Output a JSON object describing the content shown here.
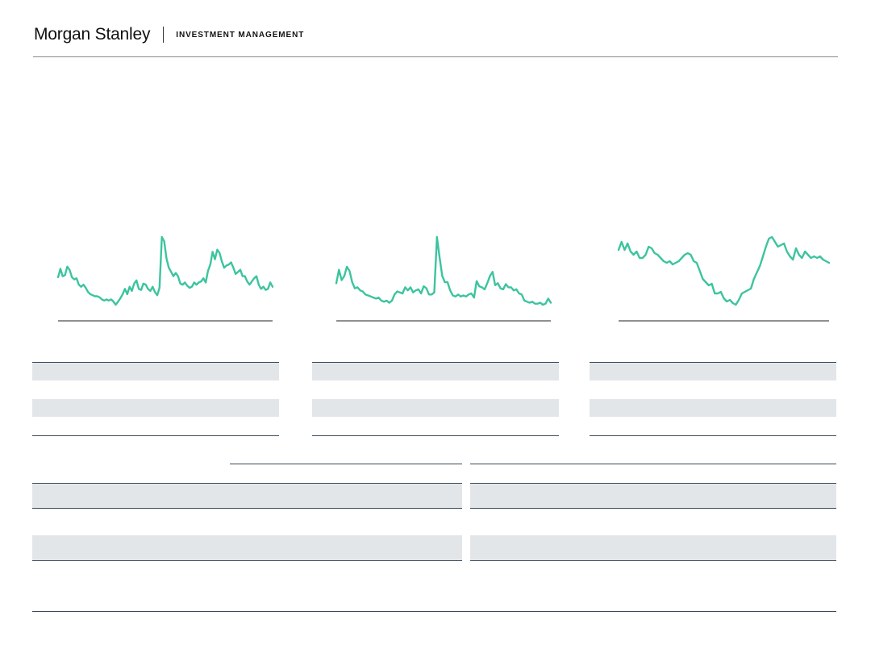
{
  "header": {
    "brand": "Morgan Stanley",
    "division": "INVESTMENT MANAGEMENT"
  },
  "colors": {
    "line": "#3cc49e",
    "band": "#e3e6e9",
    "rule": "#3a4a5a"
  },
  "chart_data": [
    {
      "type": "line",
      "title": "",
      "xlabel": "",
      "ylabel": "",
      "grid": false,
      "series": [
        {
          "values": [
            62,
            70,
            63,
            64,
            72,
            69,
            62,
            60,
            61,
            55,
            53,
            55,
            52,
            48,
            46,
            45,
            44,
            44,
            43,
            41,
            40,
            41,
            40,
            41,
            39,
            36,
            39,
            42,
            46,
            51,
            46,
            53,
            49,
            56,
            59,
            51,
            50,
            56,
            55,
            51,
            49,
            53,
            48,
            45,
            52,
            100,
            96,
            80,
            71,
            67,
            63,
            66,
            63,
            56,
            55,
            57,
            54,
            52,
            53,
            57,
            55,
            57,
            58,
            61,
            57,
            68,
            74,
            86,
            79,
            88,
            85,
            77,
            71,
            73,
            74,
            76,
            71,
            65,
            67,
            69,
            63,
            63,
            58,
            55,
            58,
            61,
            63,
            55,
            51,
            53,
            50,
            51,
            57,
            53
          ]
        }
      ]
    },
    {
      "type": "line",
      "title": "",
      "xlabel": "",
      "ylabel": "",
      "grid": false,
      "series": [
        {
          "values": [
            55,
            68,
            58,
            62,
            71,
            67,
            56,
            50,
            51,
            48,
            47,
            44,
            43,
            42,
            41,
            40,
            41,
            38,
            37,
            38,
            36,
            38,
            44,
            47,
            46,
            45,
            51,
            48,
            51,
            46,
            48,
            49,
            45,
            52,
            50,
            44,
            44,
            46,
            100,
            80,
            62,
            56,
            56,
            48,
            43,
            42,
            44,
            42,
            43,
            42,
            44,
            45,
            41,
            57,
            52,
            51,
            49,
            55,
            62,
            66,
            53,
            55,
            50,
            49,
            54,
            51,
            51,
            48,
            49,
            45,
            44,
            38,
            37,
            36,
            37,
            35,
            35,
            36,
            34,
            35,
            40,
            36
          ]
        }
      ]
    },
    {
      "type": "line",
      "title": "",
      "xlabel": "",
      "ylabel": "",
      "grid": false,
      "series": [
        {
          "values": [
            78,
            83,
            78,
            82,
            77,
            75,
            77,
            73,
            73,
            75,
            80,
            79,
            76,
            75,
            73,
            71,
            70,
            71,
            69,
            70,
            71,
            73,
            75,
            76,
            75,
            71,
            70,
            65,
            60,
            58,
            56,
            57,
            51,
            51,
            52,
            48,
            46,
            47,
            45,
            44,
            47,
            51,
            52,
            53,
            54,
            60,
            64,
            68,
            74,
            80,
            85,
            86,
            83,
            80,
            81,
            82,
            77,
            74,
            72,
            79,
            75,
            73,
            77,
            75,
            73,
            74,
            73,
            74,
            72,
            71,
            70
          ]
        }
      ]
    }
  ]
}
